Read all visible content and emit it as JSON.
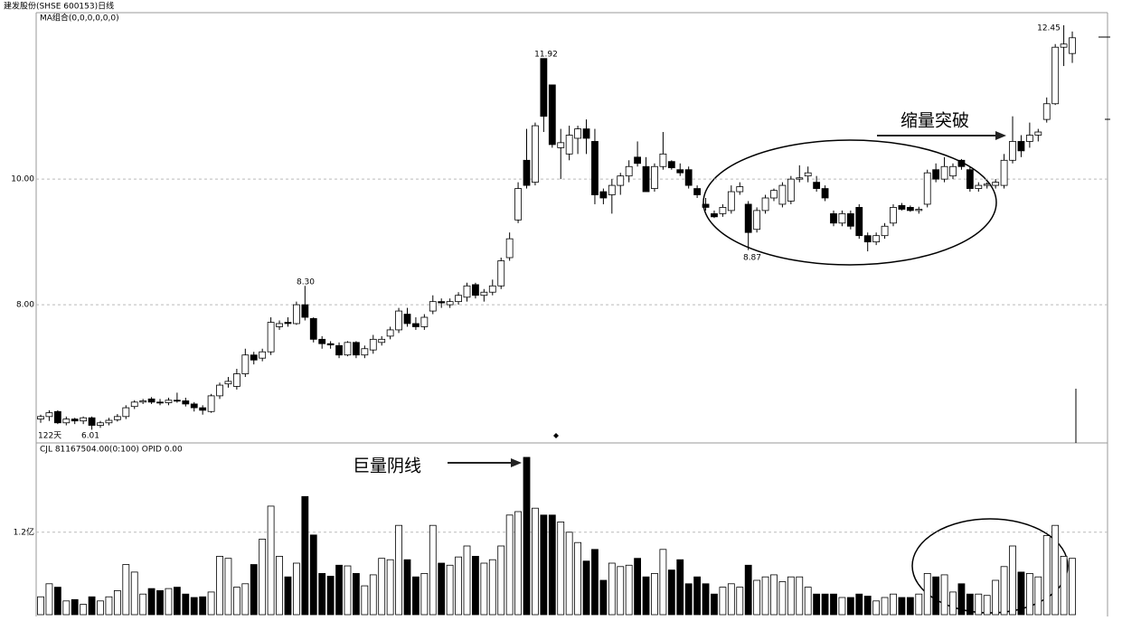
{
  "chart_data": {
    "type": "candlestick",
    "title": "建发股份(SHSE 600153)日线",
    "subtitle": "MA组合(0,0,0,0,0,0)",
    "period_label": "122天",
    "volume_label": "CJL 81167504.00(0:100)  OPID  0.00",
    "annotations": [
      "12.45",
      "11.92",
      "8.30",
      "8.87",
      "6.01",
      "缩量突破",
      "巨量阴线"
    ],
    "up_color": "#ffffff",
    "down_color": "#000000",
    "grid": true,
    "ylim": [
      5.8,
      12.65
    ],
    "yticks": [
      {
        "value": 8,
        "label": "8.00"
      },
      {
        "value": 10,
        "label": "10.00"
      }
    ],
    "volume_ylim": [
      0,
      2.5
    ],
    "volume_yticks": [
      {
        "value": 1.2,
        "label": "1.2亿"
      }
    ],
    "open": [
      6.18,
      6.22,
      6.3,
      6.12,
      6.18,
      6.15,
      6.2,
      6.08,
      6.12,
      6.17,
      6.22,
      6.38,
      6.45,
      6.5,
      6.45,
      6.44,
      6.48,
      6.47,
      6.42,
      6.36,
      6.3,
      6.55,
      6.74,
      6.7,
      6.9,
      7.2,
      7.15,
      7.25,
      7.65,
      7.72,
      7.7,
      8.0,
      7.78,
      7.45,
      7.38,
      7.35,
      7.2,
      7.4,
      7.2,
      7.28,
      7.4,
      7.5,
      7.6,
      7.85,
      7.7,
      7.65,
      7.9,
      8.05,
      8.0,
      8.05,
      8.12,
      8.32,
      8.15,
      8.2,
      8.3,
      8.75,
      9.35,
      10.3,
      9.95,
      11.92,
      11.5,
      10.5,
      10.4,
      10.65,
      10.8,
      10.6,
      9.8,
      9.75,
      9.9,
      10.05,
      10.35,
      10.2,
      9.85,
      10.2,
      10.28,
      10.15,
      10.15,
      9.85,
      9.6,
      9.45,
      9.45,
      9.5,
      9.8,
      9.6,
      9.2,
      9.5,
      9.7,
      9.6,
      9.65,
      10.0,
      10.05,
      9.95,
      9.85,
      9.45,
      9.3,
      9.45,
      9.55,
      9.1,
      9.0,
      9.1,
      9.3,
      9.58,
      9.55,
      9.5,
      9.6,
      10.15,
      10.0,
      10.05,
      10.3,
      10.15,
      9.85,
      9.9,
      9.9,
      9.9,
      10.3,
      10.6,
      10.6,
      10.7,
      10.95,
      11.2,
      12.1,
      12.0
    ],
    "high": [
      6.25,
      6.32,
      6.32,
      6.22,
      6.2,
      6.22,
      6.22,
      6.15,
      6.2,
      6.26,
      6.4,
      6.48,
      6.5,
      6.53,
      6.5,
      6.52,
      6.6,
      6.52,
      6.45,
      6.4,
      6.58,
      6.76,
      6.85,
      6.98,
      7.3,
      7.25,
      7.3,
      7.8,
      7.75,
      7.8,
      8.05,
      8.3,
      7.8,
      7.5,
      7.42,
      7.4,
      7.42,
      7.42,
      7.35,
      7.52,
      7.5,
      7.65,
      7.95,
      7.95,
      7.8,
      7.85,
      8.15,
      8.1,
      8.1,
      8.2,
      8.35,
      8.35,
      8.25,
      8.4,
      8.75,
      9.15,
      9.95,
      10.8,
      10.9,
      11.92,
      11.5,
      10.8,
      10.85,
      10.85,
      10.95,
      10.8,
      9.85,
      10.0,
      10.1,
      10.3,
      10.6,
      10.35,
      10.25,
      10.75,
      10.3,
      10.25,
      10.2,
      9.9,
      9.7,
      9.5,
      9.6,
      9.9,
      9.95,
      9.65,
      9.55,
      9.75,
      9.85,
      9.95,
      10.05,
      10.22,
      10.2,
      10.05,
      9.9,
      9.5,
      9.5,
      9.5,
      9.6,
      9.15,
      9.15,
      9.3,
      9.6,
      9.62,
      9.58,
      9.56,
      10.15,
      10.25,
      10.35,
      10.25,
      10.32,
      10.2,
      9.95,
      9.95,
      10.0,
      10.4,
      11.0,
      10.7,
      10.9,
      10.8,
      11.3,
      12.15,
      12.45,
      12.35
    ],
    "low": [
      6.12,
      6.15,
      6.1,
      6.08,
      6.1,
      6.1,
      6.01,
      6.04,
      6.08,
      6.14,
      6.18,
      6.34,
      6.42,
      6.42,
      6.4,
      6.4,
      6.44,
      6.38,
      6.3,
      6.25,
      6.28,
      6.5,
      6.68,
      6.65,
      6.85,
      7.05,
      7.1,
      7.2,
      7.6,
      7.65,
      7.68,
      7.75,
      7.4,
      7.3,
      7.3,
      7.15,
      7.18,
      7.15,
      7.15,
      7.22,
      7.35,
      7.45,
      7.55,
      7.65,
      7.6,
      7.6,
      7.85,
      7.95,
      7.95,
      8.0,
      8.05,
      8.1,
      8.05,
      8.15,
      8.25,
      8.7,
      9.3,
      9.85,
      9.9,
      10.75,
      10.5,
      10.0,
      10.3,
      10.4,
      10.4,
      9.6,
      9.6,
      9.45,
      9.75,
      9.95,
      10.2,
      9.8,
      9.8,
      10.15,
      10.15,
      10.05,
      9.85,
      9.7,
      9.5,
      9.38,
      9.4,
      9.45,
      9.75,
      8.87,
      9.15,
      9.45,
      9.65,
      9.55,
      9.6,
      9.95,
      9.95,
      9.8,
      9.65,
      9.25,
      9.25,
      9.2,
      9.05,
      8.85,
      8.95,
      9.05,
      9.25,
      9.5,
      9.48,
      9.45,
      9.55,
      9.95,
      9.95,
      10.0,
      10.15,
      9.8,
      9.8,
      9.85,
      9.85,
      9.85,
      10.25,
      10.35,
      10.5,
      10.6,
      10.9,
      11.18,
      11.8,
      11.85
    ],
    "close": [
      6.22,
      6.28,
      6.12,
      6.18,
      6.15,
      6.2,
      6.08,
      6.12,
      6.16,
      6.22,
      6.36,
      6.45,
      6.47,
      6.45,
      6.44,
      6.48,
      6.47,
      6.42,
      6.36,
      6.32,
      6.55,
      6.72,
      6.78,
      6.9,
      7.2,
      7.12,
      7.25,
      7.72,
      7.7,
      7.7,
      8.0,
      7.8,
      7.45,
      7.38,
      7.36,
      7.2,
      7.4,
      7.2,
      7.3,
      7.45,
      7.45,
      7.6,
      7.9,
      7.7,
      7.65,
      7.8,
      8.05,
      8.03,
      8.05,
      8.15,
      8.3,
      8.15,
      8.2,
      8.3,
      8.7,
      9.05,
      9.85,
      9.9,
      10.85,
      11.0,
      10.55,
      10.58,
      10.7,
      10.8,
      10.65,
      9.75,
      9.7,
      9.9,
      10.05,
      10.2,
      10.25,
      9.8,
      10.2,
      10.4,
      10.18,
      10.1,
      9.9,
      9.75,
      9.55,
      9.4,
      9.55,
      9.8,
      9.88,
      9.15,
      9.5,
      9.7,
      9.82,
      9.9,
      10.0,
      10.02,
      10.1,
      9.85,
      9.7,
      9.3,
      9.45,
      9.25,
      9.1,
      9.0,
      9.1,
      9.25,
      9.55,
      9.52,
      9.5,
      9.52,
      10.1,
      10.0,
      10.2,
      10.2,
      10.2,
      9.85,
      9.9,
      9.92,
      9.95,
      10.3,
      10.6,
      10.45,
      10.7,
      10.75,
      11.2,
      12.1,
      12.15,
      12.25
    ],
    "volume": [
      0.26,
      0.45,
      0.4,
      0.2,
      0.22,
      0.15,
      0.26,
      0.2,
      0.26,
      0.35,
      0.73,
      0.62,
      0.3,
      0.38,
      0.35,
      0.38,
      0.4,
      0.3,
      0.25,
      0.26,
      0.33,
      0.85,
      0.82,
      0.4,
      0.45,
      0.73,
      1.1,
      1.58,
      0.85,
      0.55,
      0.75,
      1.72,
      1.16,
      0.6,
      0.56,
      0.72,
      0.71,
      0.6,
      0.42,
      0.58,
      0.82,
      0.8,
      1.3,
      0.8,
      0.55,
      0.6,
      1.3,
      0.75,
      0.72,
      0.84,
      1.0,
      0.85,
      0.75,
      0.8,
      1.0,
      1.45,
      1.5,
      2.29,
      1.55,
      1.45,
      1.45,
      1.35,
      1.2,
      1.05,
      0.78,
      0.95,
      0.5,
      0.75,
      0.7,
      0.72,
      0.82,
      0.55,
      0.6,
      0.95,
      0.65,
      0.8,
      0.45,
      0.55,
      0.45,
      0.3,
      0.4,
      0.45,
      0.4,
      0.72,
      0.5,
      0.55,
      0.58,
      0.48,
      0.55,
      0.55,
      0.4,
      0.3,
      0.3,
      0.3,
      0.25,
      0.25,
      0.3,
      0.27,
      0.2,
      0.25,
      0.3,
      0.25,
      0.25,
      0.3,
      0.6,
      0.55,
      0.58,
      0.33,
      0.45,
      0.3,
      0.3,
      0.28,
      0.5,
      0.7,
      1.0,
      0.62,
      0.6,
      0.55,
      1.15,
      1.3,
      0.85,
      0.82
    ]
  }
}
